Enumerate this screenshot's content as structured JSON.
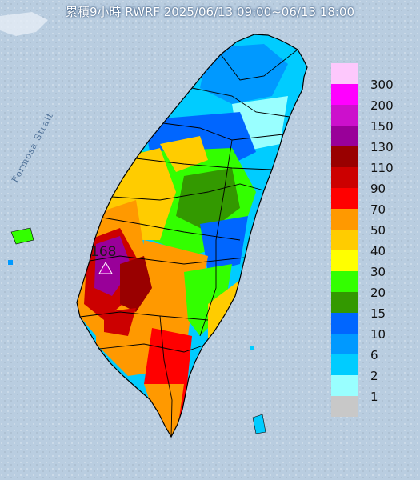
{
  "title": "累積9小時 RWRF 2025/06/13 09:00~06/13 18:00",
  "strait_label": "Formosa Strait",
  "max_marker": {
    "value": "168",
    "symbol": "triangle"
  },
  "legend": {
    "items": [
      {
        "label": "300",
        "color": "#fdc8fc"
      },
      {
        "label": "200",
        "color": "#ff00ff"
      },
      {
        "label": "150",
        "color": "#cc10cc"
      },
      {
        "label": "130",
        "color": "#990099"
      },
      {
        "label": "110",
        "color": "#990000"
      },
      {
        "label": "90",
        "color": "#cc0000"
      },
      {
        "label": "70",
        "color": "#ff0000"
      },
      {
        "label": "50",
        "color": "#ff9900"
      },
      {
        "label": "40",
        "color": "#ffcc00"
      },
      {
        "label": "30",
        "color": "#ffff00"
      },
      {
        "label": "20",
        "color": "#33ff00"
      },
      {
        "label": "15",
        "color": "#339900"
      },
      {
        "label": "10",
        "color": "#0066ff"
      },
      {
        "label": "6",
        "color": "#0099ff"
      },
      {
        "label": "2",
        "color": "#00ccff"
      },
      {
        "label": "1",
        "color": "#99ffff"
      },
      {
        "label": "",
        "color": "#c8c8c8"
      }
    ]
  },
  "colors": {
    "sea": "#b9cde0",
    "land_base": "#c8c8c8",
    "county_border": "#000000"
  }
}
